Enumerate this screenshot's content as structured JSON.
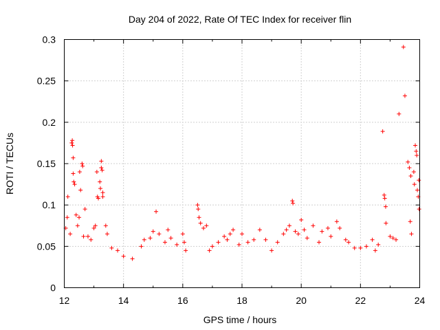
{
  "chart_data": {
    "type": "scatter",
    "title": "Day 204 of 2022, Rate Of TEC Index for receiver flin",
    "xlabel": "GPS time / hours",
    "ylabel": "ROTI / TECUs",
    "xlim": [
      12,
      24
    ],
    "ylim": [
      0,
      0.3
    ],
    "xticks": [
      12,
      14,
      16,
      18,
      20,
      22,
      24
    ],
    "xtick_labels": [
      "12",
      "14",
      "16",
      "18",
      "20",
      "22",
      "24"
    ],
    "yticks": [
      0,
      0.05,
      0.1,
      0.15,
      0.2,
      0.25,
      0.3
    ],
    "ytick_labels": [
      "0",
      "0.05",
      "0.1",
      "0.15",
      "0.2",
      "0.25",
      "0.3"
    ],
    "grid": true,
    "marker": "+",
    "color": "#ff0000",
    "series": [
      {
        "name": "ROTI",
        "points": [
          [
            12.05,
            0.072
          ],
          [
            12.1,
            0.085
          ],
          [
            12.12,
            0.11
          ],
          [
            12.2,
            0.065
          ],
          [
            12.25,
            0.175
          ],
          [
            12.27,
            0.178
          ],
          [
            12.28,
            0.172
          ],
          [
            12.3,
            0.157
          ],
          [
            12.3,
            0.138
          ],
          [
            12.32,
            0.128
          ],
          [
            12.35,
            0.125
          ],
          [
            12.4,
            0.088
          ],
          [
            12.45,
            0.075
          ],
          [
            12.5,
            0.085
          ],
          [
            12.52,
            0.14
          ],
          [
            12.55,
            0.118
          ],
          [
            12.6,
            0.15
          ],
          [
            12.62,
            0.147
          ],
          [
            12.65,
            0.062
          ],
          [
            12.7,
            0.095
          ],
          [
            12.8,
            0.062
          ],
          [
            12.9,
            0.058
          ],
          [
            13.0,
            0.072
          ],
          [
            13.05,
            0.075
          ],
          [
            13.1,
            0.14
          ],
          [
            13.12,
            0.11
          ],
          [
            13.15,
            0.108
          ],
          [
            13.2,
            0.128
          ],
          [
            13.22,
            0.12
          ],
          [
            13.25,
            0.153
          ],
          [
            13.25,
            0.145
          ],
          [
            13.28,
            0.142
          ],
          [
            13.3,
            0.115
          ],
          [
            13.3,
            0.11
          ],
          [
            13.4,
            0.075
          ],
          [
            13.45,
            0.065
          ],
          [
            13.6,
            0.048
          ],
          [
            13.8,
            0.045
          ],
          [
            14.0,
            0.038
          ],
          [
            14.3,
            0.035
          ],
          [
            14.6,
            0.05
          ],
          [
            14.7,
            0.058
          ],
          [
            14.9,
            0.06
          ],
          [
            15.0,
            0.068
          ],
          [
            15.1,
            0.092
          ],
          [
            15.2,
            0.065
          ],
          [
            15.4,
            0.055
          ],
          [
            15.5,
            0.07
          ],
          [
            15.6,
            0.06
          ],
          [
            15.8,
            0.052
          ],
          [
            16.0,
            0.065
          ],
          [
            16.05,
            0.055
          ],
          [
            16.1,
            0.045
          ],
          [
            16.5,
            0.1
          ],
          [
            16.52,
            0.095
          ],
          [
            16.55,
            0.085
          ],
          [
            16.6,
            0.078
          ],
          [
            16.7,
            0.072
          ],
          [
            16.8,
            0.075
          ],
          [
            16.9,
            0.045
          ],
          [
            17.0,
            0.05
          ],
          [
            17.2,
            0.055
          ],
          [
            17.4,
            0.062
          ],
          [
            17.5,
            0.058
          ],
          [
            17.6,
            0.065
          ],
          [
            17.7,
            0.07
          ],
          [
            17.9,
            0.052
          ],
          [
            18.0,
            0.065
          ],
          [
            18.2,
            0.055
          ],
          [
            18.4,
            0.058
          ],
          [
            18.6,
            0.07
          ],
          [
            18.8,
            0.058
          ],
          [
            19.0,
            0.045
          ],
          [
            19.2,
            0.055
          ],
          [
            19.4,
            0.065
          ],
          [
            19.5,
            0.07
          ],
          [
            19.6,
            0.075
          ],
          [
            19.7,
            0.105
          ],
          [
            19.72,
            0.102
          ],
          [
            19.8,
            0.068
          ],
          [
            19.9,
            0.065
          ],
          [
            20.0,
            0.082
          ],
          [
            20.1,
            0.07
          ],
          [
            20.2,
            0.06
          ],
          [
            20.4,
            0.075
          ],
          [
            20.6,
            0.055
          ],
          [
            20.7,
            0.068
          ],
          [
            20.9,
            0.072
          ],
          [
            21.0,
            0.062
          ],
          [
            21.2,
            0.08
          ],
          [
            21.3,
            0.072
          ],
          [
            21.5,
            0.058
          ],
          [
            21.6,
            0.055
          ],
          [
            21.8,
            0.048
          ],
          [
            22.0,
            0.048
          ],
          [
            22.2,
            0.05
          ],
          [
            22.4,
            0.058
          ],
          [
            22.5,
            0.045
          ],
          [
            22.6,
            0.052
          ],
          [
            22.75,
            0.189
          ],
          [
            22.8,
            0.112
          ],
          [
            22.82,
            0.108
          ],
          [
            22.85,
            0.098
          ],
          [
            22.86,
            0.078
          ],
          [
            23.0,
            0.062
          ],
          [
            23.1,
            0.06
          ],
          [
            23.2,
            0.058
          ],
          [
            23.3,
            0.21
          ],
          [
            23.45,
            0.291
          ],
          [
            23.5,
            0.232
          ],
          [
            23.6,
            0.152
          ],
          [
            23.65,
            0.145
          ],
          [
            23.68,
            0.08
          ],
          [
            23.7,
            0.135
          ],
          [
            23.72,
            0.065
          ],
          [
            23.8,
            0.14
          ],
          [
            23.82,
            0.125
          ],
          [
            23.85,
            0.172
          ],
          [
            23.88,
            0.165
          ],
          [
            23.9,
            0.16
          ],
          [
            23.92,
            0.118
          ],
          [
            23.95,
            0.11
          ],
          [
            23.97,
            0.13
          ],
          [
            23.98,
            0.095
          ]
        ]
      }
    ]
  }
}
